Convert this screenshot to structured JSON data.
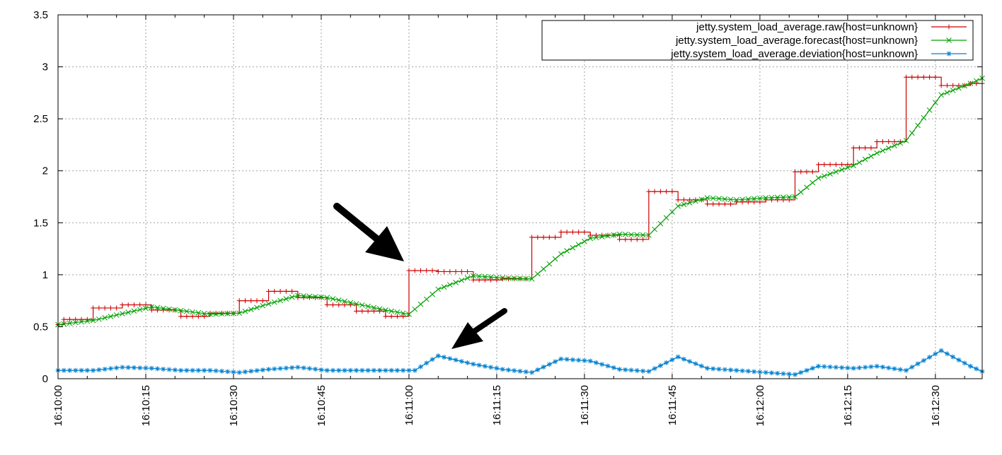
{
  "chart_data": {
    "type": "line",
    "title": "",
    "xlabel": "",
    "ylabel": "",
    "x_tick_labels": [
      "16:10:00",
      "16:10:15",
      "16:10:30",
      "16:10:45",
      "16:11:00",
      "16:11:15",
      "16:11:30",
      "16:11:45",
      "16:12:00",
      "16:12:15",
      "16:12:30"
    ],
    "x_range_seconds": [
      0,
      158
    ],
    "y_ticks": [
      0,
      0.5,
      1,
      1.5,
      2,
      2.5,
      3,
      3.5
    ],
    "y_tick_labels": [
      "0",
      "0.5",
      "1",
      "1.5",
      "2",
      "2.5",
      "3",
      "3.5"
    ],
    "ylim": [
      0,
      3.5
    ],
    "grid": true,
    "legend_position": "top-right",
    "series": [
      {
        "name": "jetty.system_load_average.raw{host=unknown}",
        "color": "#cc0000",
        "marker": "plus",
        "step": true,
        "steps": [
          [
            0,
            0.52
          ],
          [
            1,
            0.57
          ],
          [
            6,
            0.68
          ],
          [
            11,
            0.71
          ],
          [
            16,
            0.66
          ],
          [
            21,
            0.6
          ],
          [
            26,
            0.63
          ],
          [
            31,
            0.75
          ],
          [
            36,
            0.84
          ],
          [
            41,
            0.78
          ],
          [
            46,
            0.71
          ],
          [
            51,
            0.65
          ],
          [
            56,
            0.6
          ],
          [
            60,
            1.04
          ],
          [
            65,
            1.03
          ],
          [
            71,
            0.95
          ],
          [
            76,
            0.96
          ],
          [
            81,
            1.36
          ],
          [
            86,
            1.41
          ],
          [
            91,
            1.38
          ],
          [
            96,
            1.34
          ],
          [
            101,
            1.8
          ],
          [
            106,
            1.72
          ],
          [
            111,
            1.68
          ],
          [
            116,
            1.7
          ],
          [
            121,
            1.72
          ],
          [
            126,
            1.99
          ],
          [
            130,
            2.06
          ],
          [
            136,
            2.22
          ],
          [
            140,
            2.28
          ],
          [
            145,
            2.9
          ],
          [
            151,
            2.82
          ],
          [
            156,
            2.84
          ]
        ]
      },
      {
        "name": "jetty.system_load_average.forecast{host=unknown}",
        "color": "#00a000",
        "marker": "x",
        "points": [
          [
            0,
            0.52
          ],
          [
            6,
            0.56
          ],
          [
            16,
            0.69
          ],
          [
            26,
            0.62
          ],
          [
            31,
            0.63
          ],
          [
            36,
            0.72
          ],
          [
            41,
            0.8
          ],
          [
            46,
            0.78
          ],
          [
            51,
            0.72
          ],
          [
            56,
            0.66
          ],
          [
            60,
            0.62
          ],
          [
            65,
            0.86
          ],
          [
            71,
            0.99
          ],
          [
            76,
            0.97
          ],
          [
            81,
            0.96
          ],
          [
            86,
            1.2
          ],
          [
            91,
            1.35
          ],
          [
            96,
            1.39
          ],
          [
            101,
            1.38
          ],
          [
            106,
            1.66
          ],
          [
            111,
            1.74
          ],
          [
            116,
            1.72
          ],
          [
            121,
            1.74
          ],
          [
            126,
            1.75
          ],
          [
            130,
            1.93
          ],
          [
            136,
            2.05
          ],
          [
            140,
            2.17
          ],
          [
            145,
            2.29
          ],
          [
            151,
            2.73
          ],
          [
            156,
            2.84
          ],
          [
            158,
            2.89
          ]
        ]
      },
      {
        "name": "jetty.system_load_average.deviation{host=unknown}",
        "color": "#0080d0",
        "marker": "star",
        "points": [
          [
            0,
            0.08
          ],
          [
            6,
            0.08
          ],
          [
            11,
            0.11
          ],
          [
            16,
            0.1
          ],
          [
            21,
            0.08
          ],
          [
            26,
            0.08
          ],
          [
            31,
            0.06
          ],
          [
            36,
            0.09
          ],
          [
            41,
            0.11
          ],
          [
            46,
            0.08
          ],
          [
            51,
            0.08
          ],
          [
            56,
            0.08
          ],
          [
            61,
            0.08
          ],
          [
            65,
            0.22
          ],
          [
            71,
            0.14
          ],
          [
            76,
            0.09
          ],
          [
            81,
            0.06
          ],
          [
            86,
            0.19
          ],
          [
            91,
            0.17
          ],
          [
            96,
            0.09
          ],
          [
            101,
            0.07
          ],
          [
            106,
            0.21
          ],
          [
            111,
            0.1
          ],
          [
            116,
            0.08
          ],
          [
            121,
            0.06
          ],
          [
            126,
            0.04
          ],
          [
            130,
            0.12
          ],
          [
            136,
            0.1
          ],
          [
            140,
            0.12
          ],
          [
            145,
            0.08
          ],
          [
            151,
            0.27
          ],
          [
            156,
            0.12
          ],
          [
            158,
            0.07
          ]
        ]
      }
    ]
  }
}
